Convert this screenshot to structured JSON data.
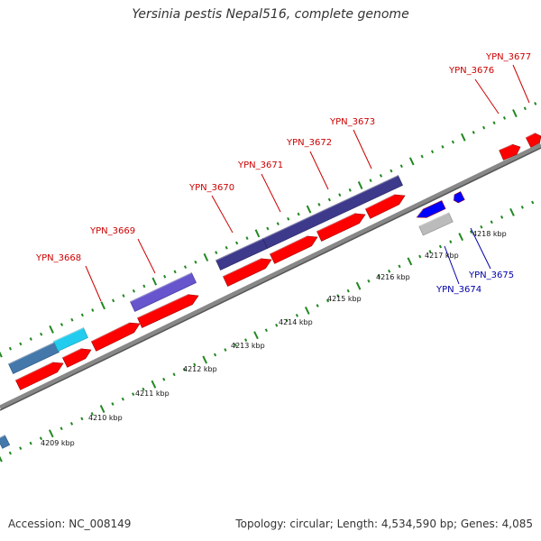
{
  "title": "Yersinia pestis Nepal516, complete genome",
  "footer": {
    "accession": "Accession: NC_008149",
    "summary": "Topology: circular; Length: 4,534,590 bp; Genes: 4,085"
  },
  "colors": {
    "backbone": "#888888",
    "forward_gene": "#ff0000",
    "reverse_gene": "#0000ff",
    "gene_label_forward": "#cc0000",
    "gene_label_reverse": "#0000aa",
    "tick": "#228822",
    "feature_dark": "#3d3a8c",
    "feature_medium": "#6655cc",
    "feature_steel": "#4477aa",
    "feature_cyan": "#22ccee",
    "feature_gray": "#bbbbbb"
  },
  "scale_labels": [
    "4209 kbp",
    "4210 kbp",
    "4211 kbp",
    "4212 kbp",
    "4213 kbp",
    "4214 kbp",
    "4215 kbp",
    "4216 kbp",
    "4217 kbp",
    "4218 kbp"
  ],
  "gene_labels": [
    {
      "text": "YPN_3668",
      "strand": "forward"
    },
    {
      "text": "YPN_3669",
      "strand": "forward"
    },
    {
      "text": "YPN_3670",
      "strand": "forward"
    },
    {
      "text": "YPN_3671",
      "strand": "forward"
    },
    {
      "text": "YPN_3672",
      "strand": "forward"
    },
    {
      "text": "YPN_3673",
      "strand": "forward"
    },
    {
      "text": "YPN_3676",
      "strand": "forward"
    },
    {
      "text": "YPN_3677",
      "strand": "forward"
    },
    {
      "text": "YPN_3674",
      "strand": "reverse"
    },
    {
      "text": "YPN_3675",
      "strand": "reverse"
    }
  ]
}
